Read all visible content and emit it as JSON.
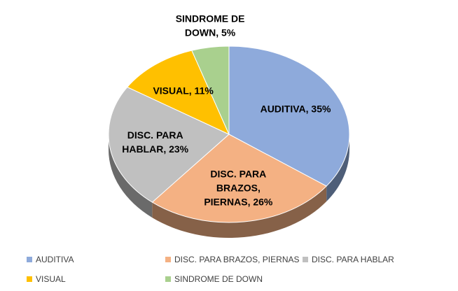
{
  "chart_data": {
    "type": "pie",
    "title": "",
    "categories": [
      "AUDITIVA",
      "DISC. PARA BRAZOS, PIERNAS",
      "DISC. PARA HABLAR",
      "VISUAL",
      "SINDROME DE DOWN"
    ],
    "values": [
      35,
      26,
      23,
      11,
      5
    ],
    "unit": "%",
    "colors": [
      "#8eaadb",
      "#f4b183",
      "#c0c0c0",
      "#ffc000",
      "#a9d08e"
    ],
    "data_labels": [
      [
        "AUDITIVA, 35%"
      ],
      [
        "DISC. PARA",
        "BRAZOS,",
        "PIERNAS, 26%"
      ],
      [
        "DISC. PARA",
        "HABLAR, 23%"
      ],
      [
        "VISUAL, 11%"
      ],
      [
        "SINDROME DE",
        "DOWN, 5%"
      ]
    ],
    "style": "3d",
    "legend_position": "bottom",
    "legend": [
      [
        "AUDITIVA",
        "DISC. PARA BRAZOS, PIERNAS",
        "DISC. PARA HABLAR"
      ],
      [
        "VISUAL",
        "SINDROME DE DOWN"
      ]
    ]
  }
}
